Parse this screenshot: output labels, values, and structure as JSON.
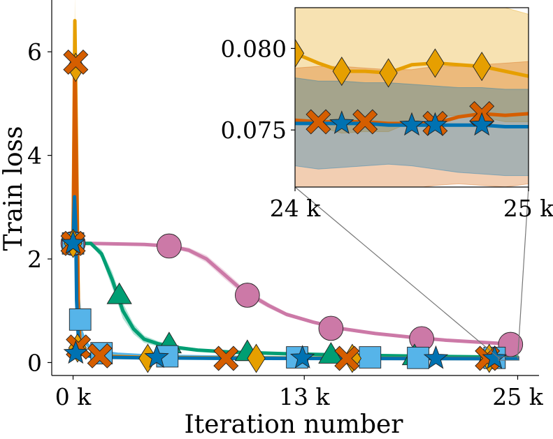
{
  "chart_data": {
    "type": "line",
    "xlabel": "Iteration number",
    "ylabel": "Train loss",
    "xlim": [
      -1200,
      26200
    ],
    "ylim": [
      -0.25,
      7.0
    ],
    "xticks": [
      {
        "value": 0,
        "label": "0 k"
      },
      {
        "value": 13000,
        "label": "13 k"
      },
      {
        "value": 25000,
        "label": "25 k"
      }
    ],
    "yticks": [
      {
        "value": 0,
        "label": "0"
      },
      {
        "value": 2,
        "label": "2"
      },
      {
        "value": 4,
        "label": "4"
      },
      {
        "value": 6,
        "label": "6"
      }
    ],
    "grid": false,
    "legend": "none",
    "series": [
      {
        "color": "#cc79a7",
        "marker": "circle",
        "x": [
          0,
          1000,
          2500,
          4000,
          5400,
          6500,
          7500,
          8500,
          9500,
          10000,
          11000,
          12000,
          13500,
          15000,
          17000,
          19000,
          21000,
          23000,
          25000
        ],
        "y": [
          2.3,
          2.3,
          2.29,
          2.28,
          2.25,
          2.17,
          2.0,
          1.7,
          1.4,
          1.3,
          1.1,
          0.93,
          0.78,
          0.66,
          0.56,
          0.49,
          0.43,
          0.39,
          0.35
        ],
        "band": [
          0,
          0,
          0.01,
          0.02,
          0.03,
          0.05,
          0.07,
          0.08,
          0.07,
          0.06,
          0.05,
          0.04,
          0.03,
          0.02,
          0.02,
          0.02,
          0.02,
          0.02,
          0.02
        ],
        "markers_x": [
          0,
          5400,
          9800,
          14500,
          19600,
          24600
        ],
        "markers_y": [
          2.3,
          2.25,
          1.3,
          0.66,
          0.46,
          0.35
        ]
      },
      {
        "color": "#009e73",
        "marker": "triangle",
        "x": [
          0,
          1000,
          1600,
          2200,
          2800,
          3400,
          4000,
          4800,
          5600,
          7000,
          9000,
          12000,
          16000,
          20000,
          25000
        ],
        "y": [
          2.3,
          2.3,
          2.1,
          1.6,
          1.0,
          0.65,
          0.45,
          0.36,
          0.3,
          0.24,
          0.2,
          0.17,
          0.14,
          0.12,
          0.1
        ],
        "band": [
          0,
          0.02,
          0.08,
          0.15,
          0.15,
          0.1,
          0.07,
          0.05,
          0.04,
          0.03,
          0.02,
          0.02,
          0.02,
          0.02,
          0.02
        ],
        "markers_x": [
          2600,
          5400,
          9800,
          14500,
          19200,
          23400
        ],
        "markers_y": [
          1.3,
          0.35,
          0.2,
          0.15,
          0.12,
          0.11
        ]
      },
      {
        "color": "#56b4e9",
        "marker": "square",
        "x": [
          0,
          200,
          300,
          450,
          700,
          1000,
          1600,
          2500,
          4000,
          7000,
          12000,
          18000,
          25000
        ],
        "y": [
          2.3,
          2.0,
          1.2,
          0.6,
          0.38,
          0.28,
          0.2,
          0.16,
          0.13,
          0.11,
          0.09,
          0.08,
          0.075
        ],
        "band": [
          0,
          0.2,
          0.2,
          0.1,
          0.05,
          0.04,
          0.03,
          0.02,
          0.02,
          0.01,
          0.01,
          0.01,
          0.01
        ],
        "markers_x": [
          0,
          400,
          1600,
          5300,
          12600,
          16700,
          19400,
          23700
        ],
        "markers_y": [
          2.3,
          0.83,
          0.18,
          0.12,
          0.1,
          0.1,
          0.09,
          0.09
        ]
      },
      {
        "color": "#e69f00",
        "marker": "diamond",
        "x": [
          0,
          100,
          200,
          300,
          400,
          600,
          1000,
          2000,
          4000,
          8000,
          14000,
          20000,
          25000
        ],
        "y": [
          2.3,
          6.6,
          4.0,
          1.0,
          0.35,
          0.2,
          0.15,
          0.12,
          0.1,
          0.09,
          0.085,
          0.082,
          0.079
        ],
        "band": [
          0,
          0.5,
          0.8,
          0.3,
          0.1,
          0.05,
          0.03,
          0.02,
          0.02,
          0.01,
          0.01,
          0.01,
          0.01
        ],
        "markers_x": [
          0,
          150,
          250,
          4200,
          10300,
          15700,
          23400
        ],
        "markers_y": [
          2.3,
          5.7,
          0.28,
          0.08,
          0.08,
          0.08,
          0.08
        ]
      },
      {
        "color": "#d55e00",
        "marker": "x",
        "x": [
          0,
          100,
          200,
          300,
          400,
          600,
          1000,
          2000,
          4000,
          8000,
          14000,
          20000,
          25000
        ],
        "y": [
          2.3,
          5.8,
          3.5,
          0.9,
          0.3,
          0.18,
          0.14,
          0.11,
          0.095,
          0.085,
          0.08,
          0.078,
          0.076
        ],
        "band": [
          0,
          0.3,
          0.4,
          0.2,
          0.08,
          0.04,
          0.03,
          0.02,
          0.02,
          0.01,
          0.01,
          0.01,
          0.01
        ],
        "markers_x": [
          0,
          150,
          300,
          1500,
          8600,
          15400,
          23300
        ],
        "markers_y": [
          2.3,
          5.8,
          0.3,
          0.13,
          0.08,
          0.08,
          0.08
        ]
      },
      {
        "color": "#0072b2",
        "marker": "star",
        "x": [
          0,
          80,
          150,
          200,
          300,
          450,
          700,
          1000,
          2000,
          4000,
          8000,
          14000,
          20000,
          25000
        ],
        "y": [
          2.3,
          3.2,
          2.6,
          1.2,
          0.45,
          0.22,
          0.14,
          0.12,
          0.1,
          0.09,
          0.082,
          0.079,
          0.077,
          0.075
        ],
        "band": [
          0,
          0.1,
          0.15,
          0.1,
          0.05,
          0.03,
          0.02,
          0.02,
          0.01,
          0.01,
          0.01,
          0.01,
          0.01,
          0.01
        ],
        "markers_x": [
          0,
          150,
          4700,
          12900,
          20400,
          23700
        ],
        "markers_y": [
          2.3,
          0.18,
          0.1,
          0.09,
          0.08,
          0.08
        ]
      }
    ],
    "inset": {
      "xlim": [
        24000,
        25000
      ],
      "ylim": [
        0.0715,
        0.0825
      ],
      "xticks": [
        {
          "value": 24000,
          "label": "24 k"
        },
        {
          "value": 25000,
          "label": "25 k"
        }
      ],
      "yticks": [
        {
          "value": 0.075,
          "label": "0.075"
        },
        {
          "value": 0.08,
          "label": "0.080"
        }
      ],
      "series": [
        {
          "color": "#e69f00",
          "marker": "diamond",
          "x": [
            24000,
            24100,
            24200,
            24300,
            24400,
            24500,
            24600,
            24700,
            24800,
            24900,
            25000
          ],
          "y": [
            0.0797,
            0.0791,
            0.0786,
            0.0786,
            0.0785,
            0.079,
            0.0791,
            0.079,
            0.0789,
            0.0786,
            0.0783
          ],
          "lo": [
            0.0757,
            0.0752,
            0.0748,
            0.0749,
            0.0749,
            0.0755,
            0.0758,
            0.0759,
            0.0758,
            0.0755,
            0.0755
          ],
          "hi": [
            0.0832,
            0.0829,
            0.0825,
            0.0828,
            0.0826,
            0.083,
            0.0832,
            0.0834,
            0.0831,
            0.0825,
            0.0821
          ],
          "markers_x": [
            24000,
            24200,
            24400,
            24600,
            24800
          ],
          "markers_y": [
            0.0797,
            0.0786,
            0.0785,
            0.0791,
            0.0789
          ]
        },
        {
          "color": "#d55e00",
          "marker": "x",
          "x": [
            24000,
            24100,
            24200,
            24300,
            24400,
            24500,
            24600,
            24700,
            24800,
            24900,
            25000
          ],
          "y": [
            0.0756,
            0.0755,
            0.0755,
            0.0755,
            0.0754,
            0.0754,
            0.0754,
            0.0758,
            0.076,
            0.0759,
            0.076
          ],
          "lo": [
            0.0713,
            0.071,
            0.0709,
            0.0711,
            0.0712,
            0.0714,
            0.0716,
            0.0717,
            0.0716,
            0.0715,
            0.0717
          ],
          "hi": [
            0.0788,
            0.0789,
            0.0789,
            0.0788,
            0.0787,
            0.0787,
            0.0789,
            0.0789,
            0.079,
            0.0791,
            0.0792
          ],
          "markers_x": [
            24100,
            24300,
            24600,
            24800
          ],
          "markers_y": [
            0.0755,
            0.0755,
            0.0754,
            0.076
          ]
        },
        {
          "color": "#0072b2",
          "marker": "star",
          "x": [
            24000,
            24100,
            24200,
            24300,
            24400,
            24500,
            24600,
            24700,
            24800,
            24900,
            25000
          ],
          "y": [
            0.0754,
            0.0754,
            0.0754,
            0.0754,
            0.0753,
            0.0753,
            0.0753,
            0.0753,
            0.0753,
            0.0752,
            0.0752
          ],
          "lo": [
            0.0728,
            0.0726,
            0.0727,
            0.0728,
            0.0729,
            0.0728,
            0.0726,
            0.0724,
            0.0723,
            0.0722,
            0.0722
          ],
          "hi": [
            0.0782,
            0.078,
            0.078,
            0.0779,
            0.0779,
            0.0778,
            0.0777,
            0.0776,
            0.0776,
            0.0775,
            0.0775
          ],
          "markers_x": [
            24200,
            24500,
            24600,
            24800
          ],
          "markers_y": [
            0.0754,
            0.0753,
            0.0753,
            0.0753
          ]
        }
      ]
    }
  }
}
